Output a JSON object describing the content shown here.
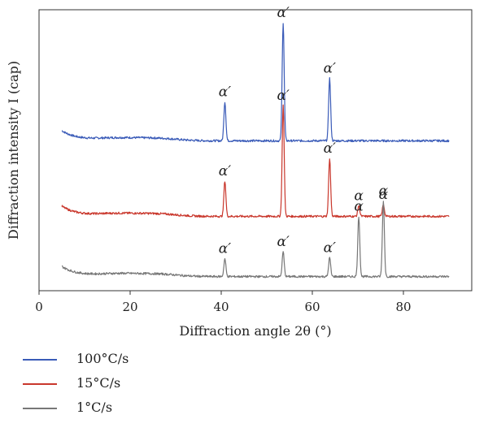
{
  "chart_data": {
    "type": "line",
    "title": "",
    "xlabel": "Diffraction angle 2θ (°)",
    "ylabel": "Diffraction intensity I (cap)",
    "xlim": [
      0,
      95
    ],
    "xticks": [
      0,
      20,
      40,
      60,
      80
    ],
    "y_ticks_shown": false,
    "grid": false,
    "legend_position": "bottom-left, below plot",
    "x_range": [
      5,
      90
    ],
    "series": [
      {
        "name": "100°C/s",
        "color": "#3a5bb8",
        "baseline": 11.5,
        "peaks": [
          {
            "x": 40.8,
            "height": 3.3,
            "label": "α′"
          },
          {
            "x": 53.6,
            "height": 10.0,
            "label": "α′"
          },
          {
            "x": 63.8,
            "height": 5.3,
            "label": "α′"
          }
        ]
      },
      {
        "name": "15°C/s",
        "color": "#c9372c",
        "baseline": 5.1,
        "peaks": [
          {
            "x": 40.8,
            "height": 3.0,
            "label": "α′"
          },
          {
            "x": 53.6,
            "height": 9.4,
            "label": "α′"
          },
          {
            "x": 63.8,
            "height": 4.9,
            "label": "α′"
          },
          {
            "x": 70.2,
            "height": 0.9,
            "label": "α"
          },
          {
            "x": 75.6,
            "height": 1.0,
            "label": "α"
          }
        ]
      },
      {
        "name": "1°C/s",
        "color": "#777777",
        "baseline": 0.0,
        "peaks": [
          {
            "x": 40.8,
            "height": 1.5,
            "label": "α′"
          },
          {
            "x": 53.6,
            "height": 2.1,
            "label": "α′"
          },
          {
            "x": 63.8,
            "height": 1.6,
            "label": "α′"
          },
          {
            "x": 70.2,
            "height": 5.1,
            "label": "α"
          },
          {
            "x": 75.6,
            "height": 6.4,
            "label": "α"
          }
        ]
      }
    ]
  }
}
